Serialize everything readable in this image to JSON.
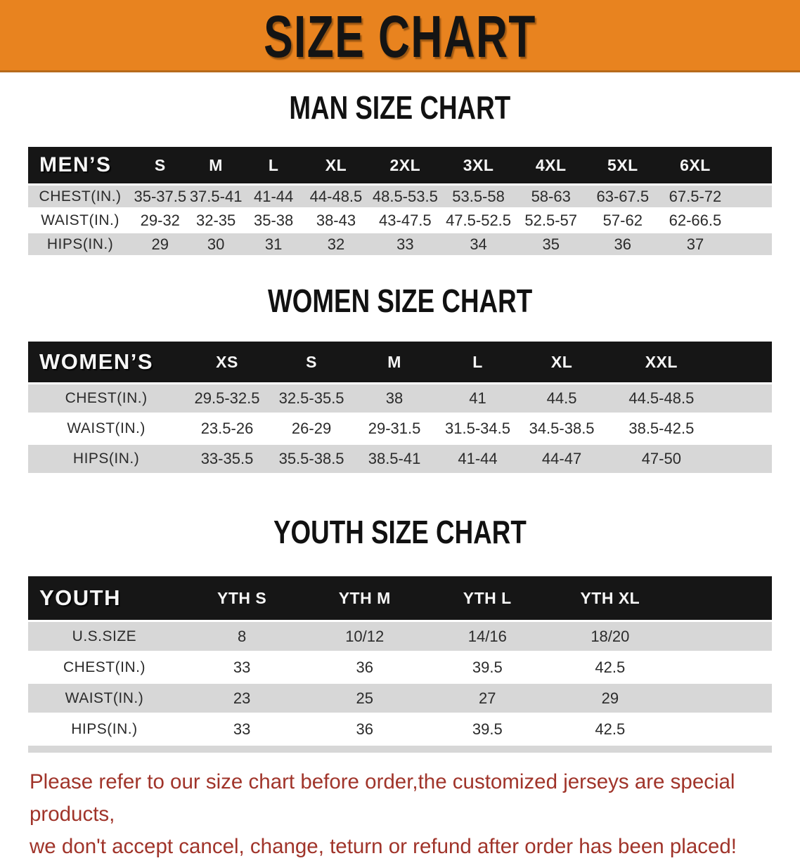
{
  "banner": {
    "title": "SIZE CHART"
  },
  "sections": [
    {
      "title": "MAN SIZE CHART",
      "table": {
        "header_label": "MEN’S",
        "columns": [
          "S",
          "M",
          "L",
          "XL",
          "2XL",
          "3XL",
          "4XL",
          "5XL",
          "6XL"
        ],
        "rows": [
          {
            "label": "CHEST(IN.)",
            "values": [
              "35-37.5",
              "37.5-41",
              "41-44",
              "44-48.5",
              "48.5-53.5",
              "53.5-58",
              "58-63",
              "63-67.5",
              "67.5-72"
            ]
          },
          {
            "label": "WAIST(IN.)",
            "values": [
              "29-32",
              "32-35",
              "35-38",
              "38-43",
              "43-47.5",
              "47.5-52.5",
              "52.5-57",
              "57-62",
              "62-66.5"
            ]
          },
          {
            "label": "HIPS(IN.)",
            "values": [
              "29",
              "30",
              "31",
              "32",
              "33",
              "34",
              "35",
              "36",
              "37"
            ]
          }
        ]
      }
    },
    {
      "title": "WOMEN SIZE CHART",
      "table": {
        "header_label": "WOMEN’S",
        "columns": [
          "XS",
          "S",
          "M",
          "L",
          "XL",
          "XXL"
        ],
        "rows": [
          {
            "label": "CHEST(IN.)",
            "values": [
              "29.5-32.5",
              "32.5-35.5",
              "38",
              "41",
              "44.5",
              "44.5-48.5"
            ]
          },
          {
            "label": "WAIST(IN.)",
            "values": [
              "23.5-26",
              "26-29",
              "29-31.5",
              "31.5-34.5",
              "34.5-38.5",
              "38.5-42.5"
            ]
          },
          {
            "label": "HIPS(IN.)",
            "values": [
              "33-35.5",
              "35.5-38.5",
              "38.5-41",
              "41-44",
              "44-47",
              "47-50"
            ]
          }
        ]
      }
    },
    {
      "title": "YOUTH SIZE CHART",
      "table": {
        "header_label": "YOUTH",
        "columns": [
          "YTH S",
          "YTH M",
          "YTH L",
          "YTH XL"
        ],
        "rows": [
          {
            "label": "U.S.SIZE",
            "values": [
              "8",
              "10/12",
              "14/16",
              "18/20"
            ]
          },
          {
            "label": "CHEST(IN.)",
            "values": [
              "33",
              "36",
              "39.5",
              "42.5"
            ]
          },
          {
            "label": "WAIST(IN.)",
            "values": [
              "23",
              "25",
              "27",
              "29"
            ]
          },
          {
            "label": "HIPS(IN.)",
            "values": [
              "33",
              "36",
              "39.5",
              "42.5"
            ]
          }
        ]
      }
    }
  ],
  "disclaimer": {
    "line1": "Please refer to our size chart before order,the customized jerseys are special products,",
    "line2": "we don't accept cancel, change, teturn or refund after order has been placed!"
  },
  "colors": {
    "banner_orange": "#E8831F",
    "header_bar_black": "#161616",
    "shaded_row_gray": "#D7D7D7",
    "disclaimer_red": "#A0342A"
  }
}
